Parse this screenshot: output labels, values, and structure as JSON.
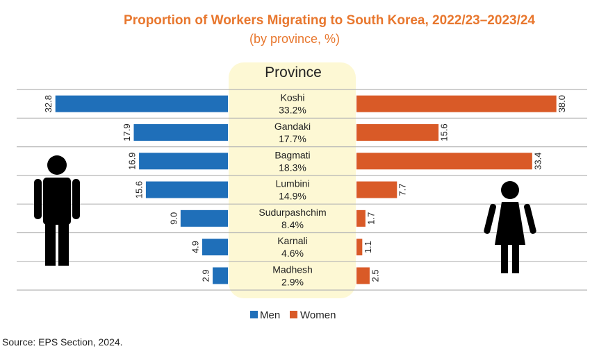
{
  "chart_data": {
    "type": "bar",
    "title": "Proportion of Workers Migrating to South Korea, 2022/23–2023/24",
    "subtitle": "(by province, %)",
    "center_header": "Province",
    "categories": [
      "Koshi",
      "Gandaki",
      "Bagmati",
      "Lumbini",
      "Sudurpashchim",
      "Karnali",
      "Madhesh"
    ],
    "province_share": [
      "33.2%",
      "17.7%",
      "18.3%",
      "14.9%",
      "8.4%",
      "4.6%",
      "2.9%"
    ],
    "series": [
      {
        "name": "Men",
        "values": [
          32.8,
          17.9,
          16.9,
          15.6,
          9.0,
          4.9,
          2.9
        ],
        "labels": [
          "32.8",
          "17.9",
          "16.9",
          "15.6",
          "9.0",
          "4.9",
          "2.9"
        ]
      },
      {
        "name": "Women",
        "values": [
          38.0,
          15.6,
          33.4,
          7.7,
          1.7,
          1.1,
          2.5
        ],
        "labels": [
          "38.0",
          "15.6",
          "33.4",
          "7.7",
          "1.7",
          "1.1",
          "2.5"
        ]
      }
    ],
    "legend_position": "bottom",
    "colors": {
      "men": "#1f6fb9",
      "women": "#d95a27",
      "title": "#e8772e",
      "center_band": "#fdf8d4"
    },
    "source": "Source: EPS Section, 2024."
  }
}
